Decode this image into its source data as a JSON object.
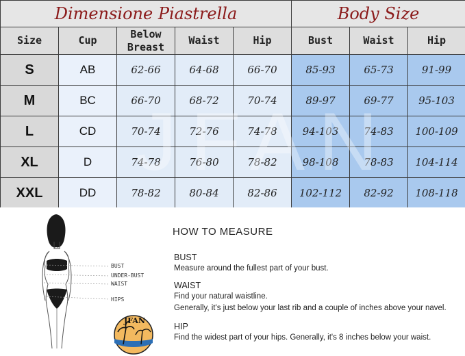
{
  "table": {
    "group_left": "Dimensione Piastrella",
    "group_right": "Body Size",
    "headers": [
      "Size",
      "Cup",
      "Below\nBreast",
      "Waist",
      "Hip",
      "Bust",
      "Waist",
      "Hip"
    ],
    "rows": [
      {
        "size": "S",
        "cup": "AB",
        "below_breast": "62-66",
        "waist": "64-68",
        "hip": "66-70",
        "bust": "85-93",
        "body_waist": "65-73",
        "body_hip": "91-99"
      },
      {
        "size": "M",
        "cup": "BC",
        "below_breast": "66-70",
        "waist": "68-72",
        "hip": "70-74",
        "bust": "89-97",
        "body_waist": "69-77",
        "body_hip": "95-103"
      },
      {
        "size": "L",
        "cup": "CD",
        "below_breast": "70-74",
        "waist": "72-76",
        "hip": "74-78",
        "bust": "94-103",
        "body_waist": "74-83",
        "body_hip": "100-109"
      },
      {
        "size": "XL",
        "cup": "D",
        "below_breast": "74-78",
        "waist": "76-80",
        "hip": "78-82",
        "bust": "98-108",
        "body_waist": "78-83",
        "body_hip": "104-114"
      },
      {
        "size": "XXL",
        "cup": "DD",
        "below_breast": "78-82",
        "waist": "80-84",
        "hip": "82-86",
        "bust": "102-112",
        "body_waist": "82-92",
        "body_hip": "108-118"
      }
    ],
    "watermark": "JFAN"
  },
  "guide": {
    "figure_labels": {
      "bust": "BUST",
      "under_bust": "UNDER-BUST",
      "waist": "WAIST",
      "hips": "HIPS"
    },
    "logo_text": "JFAN",
    "title": "HOW TO MEASURE",
    "items": [
      {
        "title": "BUST",
        "lines": [
          "Measure around the fullest part of your bust."
        ]
      },
      {
        "title": "WAIST",
        "lines": [
          "Find your natural waistline.",
          "Generally, it's just below your last rib and a couple of inches above your navel."
        ]
      },
      {
        "title": "HIP",
        "lines": [
          "Find the widest part of your hips. Generally, it's 8 inches below your waist."
        ]
      }
    ]
  }
}
